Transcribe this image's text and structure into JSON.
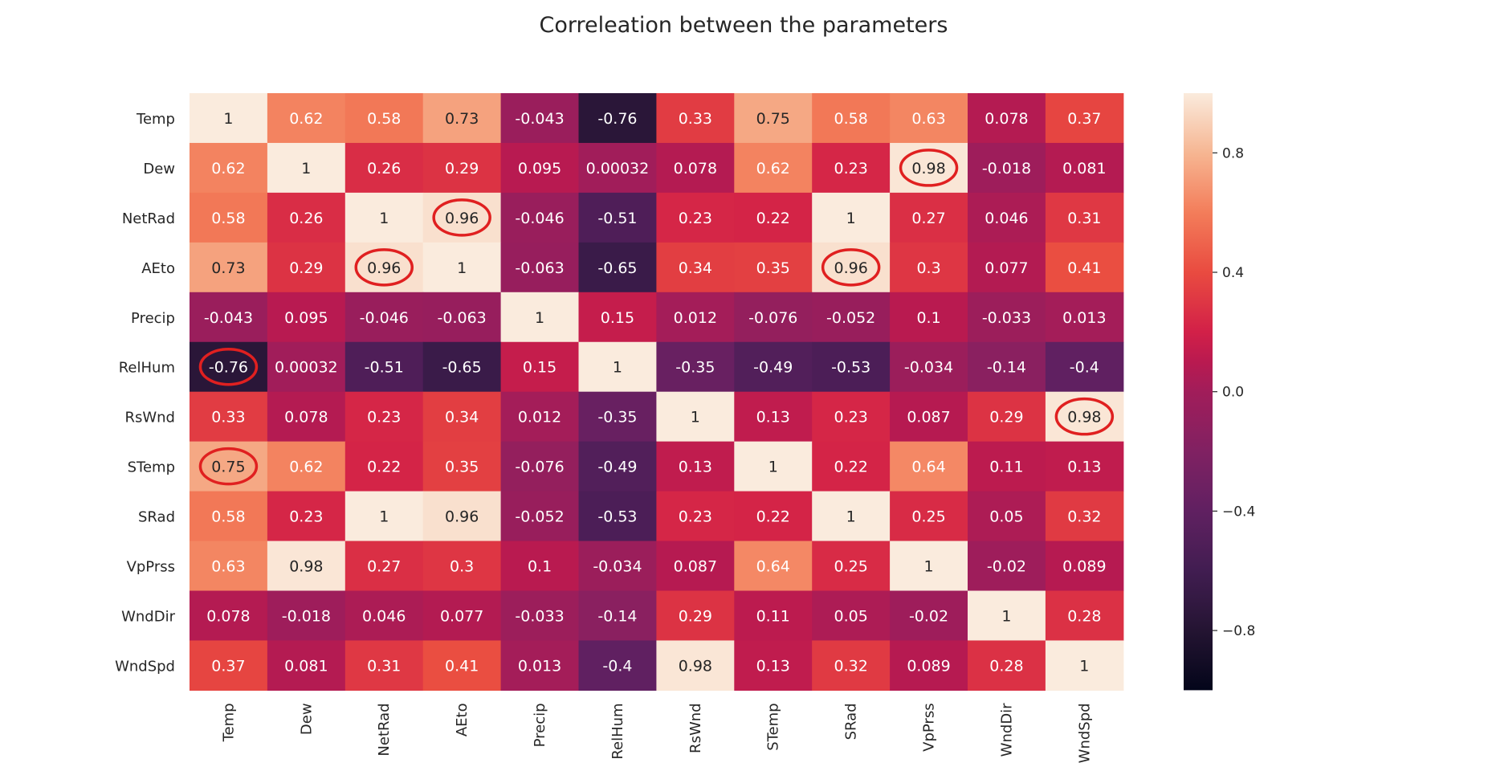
{
  "chart_data": {
    "type": "heatmap",
    "title": "Correleation between the parameters",
    "xlabel": "",
    "ylabel": "",
    "labels": [
      "Temp",
      "Dew",
      "NetRad",
      "AEto",
      "Precip",
      "RelHum",
      "RsWnd",
      "STemp",
      "SRad",
      "VpPrss",
      "WndDir",
      "WndSpd"
    ],
    "values": [
      [
        "1",
        "0.62",
        "0.58",
        "0.73",
        "-0.043",
        "-0.76",
        "0.33",
        "0.75",
        "0.58",
        "0.63",
        "0.078",
        "0.37"
      ],
      [
        "0.62",
        "1",
        "0.26",
        "0.29",
        "0.095",
        "0.00032",
        "0.078",
        "0.62",
        "0.23",
        "0.98",
        "-0.018",
        "0.081"
      ],
      [
        "0.58",
        "0.26",
        "1",
        "0.96",
        "-0.046",
        "-0.51",
        "0.23",
        "0.22",
        "1",
        "0.27",
        "0.046",
        "0.31"
      ],
      [
        "0.73",
        "0.29",
        "0.96",
        "1",
        "-0.063",
        "-0.65",
        "0.34",
        "0.35",
        "0.96",
        "0.3",
        "0.077",
        "0.41"
      ],
      [
        "-0.043",
        "0.095",
        "-0.046",
        "-0.063",
        "1",
        "0.15",
        "0.012",
        "-0.076",
        "-0.052",
        "0.1",
        "-0.033",
        "0.013"
      ],
      [
        "-0.76",
        "0.00032",
        "-0.51",
        "-0.65",
        "0.15",
        "1",
        "-0.35",
        "-0.49",
        "-0.53",
        "-0.034",
        "-0.14",
        "-0.4"
      ],
      [
        "0.33",
        "0.078",
        "0.23",
        "0.34",
        "0.012",
        "-0.35",
        "1",
        "0.13",
        "0.23",
        "0.087",
        "0.29",
        "0.98"
      ],
      [
        "0.75",
        "0.62",
        "0.22",
        "0.35",
        "-0.076",
        "-0.49",
        "0.13",
        "1",
        "0.22",
        "0.64",
        "0.11",
        "0.13"
      ],
      [
        "0.58",
        "0.23",
        "1",
        "0.96",
        "-0.052",
        "-0.53",
        "0.23",
        "0.22",
        "1",
        "0.25",
        "0.05",
        "0.32"
      ],
      [
        "0.63",
        "0.98",
        "0.27",
        "0.3",
        "0.1",
        "-0.034",
        "0.087",
        "0.64",
        "0.25",
        "1",
        "-0.02",
        "0.089"
      ],
      [
        "0.078",
        "-0.018",
        "0.046",
        "0.077",
        "-0.033",
        "-0.14",
        "0.29",
        "0.11",
        "0.05",
        "-0.02",
        "1",
        "0.28"
      ],
      [
        "0.37",
        "0.081",
        "0.31",
        "0.41",
        "0.013",
        "-0.4",
        "0.98",
        "0.13",
        "0.32",
        "0.089",
        "0.28",
        "1"
      ]
    ],
    "colorbar": {
      "colormap": "rocket",
      "vmin": -1,
      "vmax": 1,
      "ticks": [
        "0.8",
        "0.4",
        "0.0",
        "−0.4",
        "−0.8"
      ]
    },
    "annotations": {
      "type": "circle",
      "color": "#e02020",
      "cells": [
        [
          1,
          9
        ],
        [
          2,
          3
        ],
        [
          3,
          2
        ],
        [
          3,
          8
        ],
        [
          5,
          0
        ],
        [
          6,
          11
        ],
        [
          7,
          0
        ]
      ]
    }
  }
}
